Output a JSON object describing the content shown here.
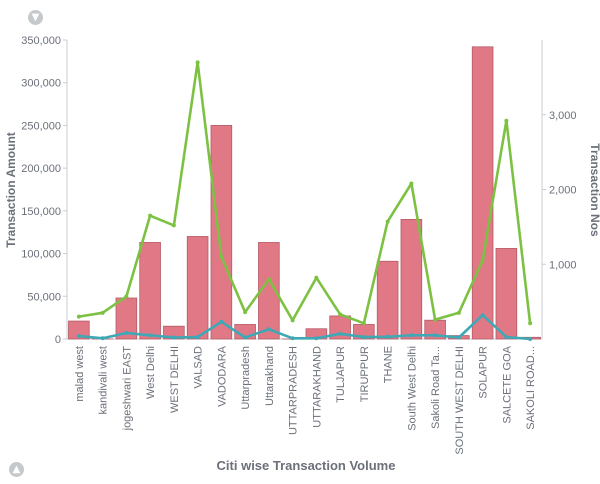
{
  "chart_data": {
    "type": "bar+line",
    "xlabel": "Citi wise Transaction Volume",
    "ylabel_left": "Transaction Amount",
    "ylabel_right": "Transaction Nos",
    "ylim_left": [
      0,
      350000
    ],
    "ylim_right": [
      0,
      4000
    ],
    "yticks_left": [
      "0",
      "50,000",
      "100,000",
      "150,000",
      "200,000",
      "250,000",
      "300,000",
      "350,000"
    ],
    "yticks_right": [
      "1,000",
      "2,000",
      "3,000"
    ],
    "categories": [
      "malad west",
      "kandivali west",
      "jogeshwari EAST",
      "West Delhi",
      "WEST DELHI",
      "VALSAD",
      "VADODARA",
      "Uttarpradesh",
      "Uttarakhand",
      "UTTARPRADESH",
      "UTTARAKHAND",
      "TULJAPUR",
      "TIRUPPUR",
      "THANE",
      "South West Delhi",
      "Sakoli Road Ta...",
      "SOUTH WEST DELHI",
      "SOLAPUR",
      "SALCETE GOA",
      "SAKOLI ROAD..."
    ],
    "series": [
      {
        "axis": "left",
        "kind": "bar",
        "color": "#e07985",
        "values": [
          21000,
          0,
          48000,
          113000,
          15000,
          120000,
          250000,
          17000,
          113000,
          0,
          12000,
          27000,
          17000,
          91000,
          140000,
          22000,
          4000,
          342000,
          106000,
          2000
        ]
      },
      {
        "axis": "right",
        "kind": "line",
        "color": "#7dc143",
        "values": [
          300,
          350,
          570,
          1650,
          1520,
          3700,
          1100,
          360,
          800,
          250,
          820,
          330,
          210,
          1570,
          2080,
          260,
          350,
          1050,
          2920,
          210
        ]
      },
      {
        "axis": "right",
        "kind": "line",
        "color": "#3fa8b5",
        "values": [
          40,
          10,
          80,
          50,
          20,
          25,
          230,
          20,
          130,
          10,
          10,
          70,
          25,
          30,
          50,
          50,
          20,
          320,
          25,
          0
        ]
      }
    ],
    "grid": false,
    "legend": "none"
  }
}
